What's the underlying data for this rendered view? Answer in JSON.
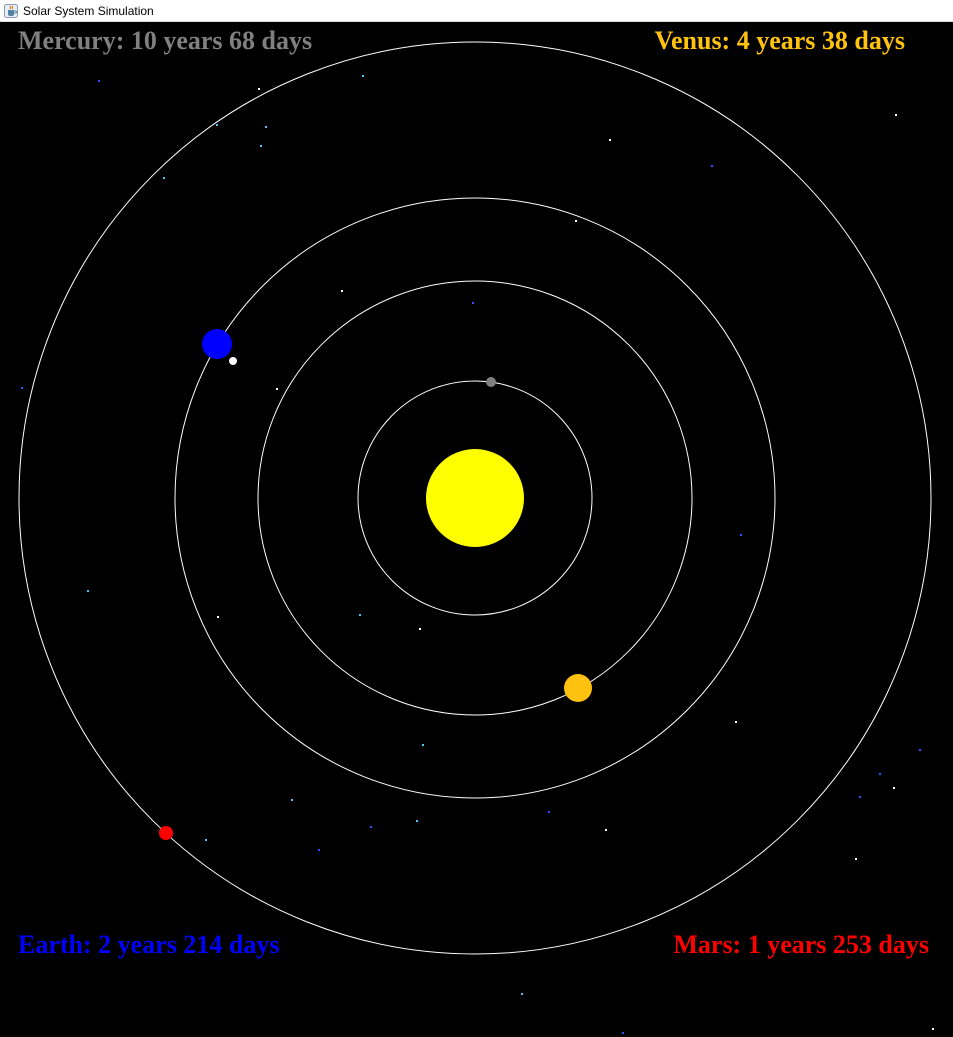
{
  "window": {
    "title": "Solar System Simulation",
    "icon": "java-cup-icon"
  },
  "colors": {
    "background": "#000000",
    "orbit": "#ffffff",
    "sun": "#ffff00",
    "mercury": "#808080",
    "venus": "#ffc20e",
    "earth": "#0000ff",
    "moon": "#ffffff",
    "mars": "#ff0000",
    "star_white": "#ffffff",
    "star_cyan": "#4fc3f7",
    "star_blue": "#3050ff"
  },
  "labels": {
    "mercury": "Mercury: 10 years 68 days",
    "venus": "Venus: 4 years 38 days",
    "earth": "Earth: 2 years 214 days",
    "mars": "Mars: 1 years 253 days"
  }
}
